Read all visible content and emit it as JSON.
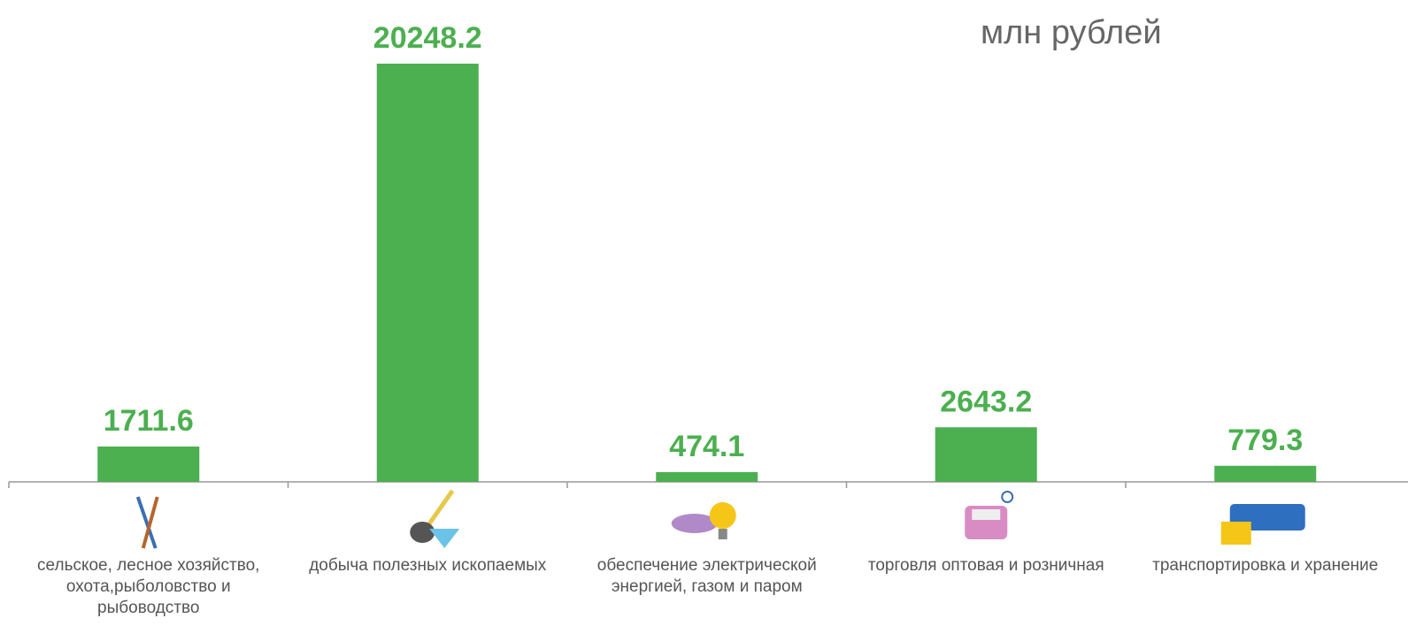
{
  "chart_data": {
    "type": "bar",
    "subtitle": "млн рублей",
    "categories": [
      "сельское, лесное хозяйство, охота,рыболовство и рыбоводство",
      "добыча полезных ископаемых",
      "обеспечение электрической энергией, газом и паром",
      "торговля оптовая и розничная",
      "транспортировка и хранение"
    ],
    "values": [
      1711.6,
      20248.2,
      474.1,
      2643.2,
      779.3
    ],
    "color": "#4caf50"
  }
}
